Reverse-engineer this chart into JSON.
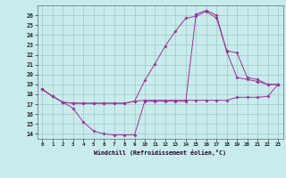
{
  "xlabel": "Windchill (Refroidissement éolien,°C)",
  "xlim": [
    -0.5,
    23.5
  ],
  "ylim": [
    13.5,
    27.0
  ],
  "xticks": [
    0,
    1,
    2,
    3,
    4,
    5,
    6,
    7,
    8,
    9,
    10,
    11,
    12,
    13,
    14,
    15,
    16,
    17,
    18,
    19,
    20,
    21,
    22,
    23
  ],
  "yticks": [
    14,
    15,
    16,
    17,
    18,
    19,
    20,
    21,
    22,
    23,
    24,
    25,
    26
  ],
  "background_color": "#c8ecec",
  "line_color": "#993399",
  "grid_color": "#a0c8c8",
  "line1_x": [
    0,
    1,
    2,
    3,
    4,
    5,
    6,
    7,
    8,
    9,
    10,
    11,
    12,
    13,
    14,
    15,
    16,
    17,
    18,
    19,
    20,
    21,
    22,
    23
  ],
  "line1_y": [
    18.5,
    17.8,
    17.2,
    16.6,
    15.2,
    14.3,
    14.0,
    13.9,
    13.9,
    13.9,
    17.3,
    17.3,
    17.3,
    17.3,
    17.3,
    26.1,
    26.5,
    26.0,
    22.3,
    19.7,
    19.5,
    19.3,
    19.0,
    19.0
  ],
  "line2_x": [
    0,
    1,
    2,
    3,
    4,
    5,
    6,
    7,
    8,
    9,
    10,
    11,
    12,
    13,
    14,
    15,
    16,
    17,
    18,
    19,
    20,
    21,
    22,
    23
  ],
  "line2_y": [
    18.5,
    17.8,
    17.2,
    17.1,
    17.1,
    17.1,
    17.1,
    17.1,
    17.1,
    17.3,
    19.4,
    21.1,
    22.9,
    24.4,
    25.7,
    25.9,
    26.4,
    25.7,
    22.4,
    22.2,
    19.7,
    19.5,
    19.0,
    19.0
  ],
  "line3_x": [
    0,
    1,
    2,
    3,
    4,
    5,
    6,
    7,
    8,
    9,
    10,
    11,
    12,
    13,
    14,
    15,
    16,
    17,
    18,
    19,
    20,
    21,
    22,
    23
  ],
  "line3_y": [
    18.5,
    17.8,
    17.2,
    17.1,
    17.1,
    17.1,
    17.1,
    17.1,
    17.1,
    17.3,
    17.4,
    17.4,
    17.4,
    17.4,
    17.4,
    17.4,
    17.4,
    17.4,
    17.4,
    17.7,
    17.7,
    17.7,
    17.8,
    19.0
  ]
}
